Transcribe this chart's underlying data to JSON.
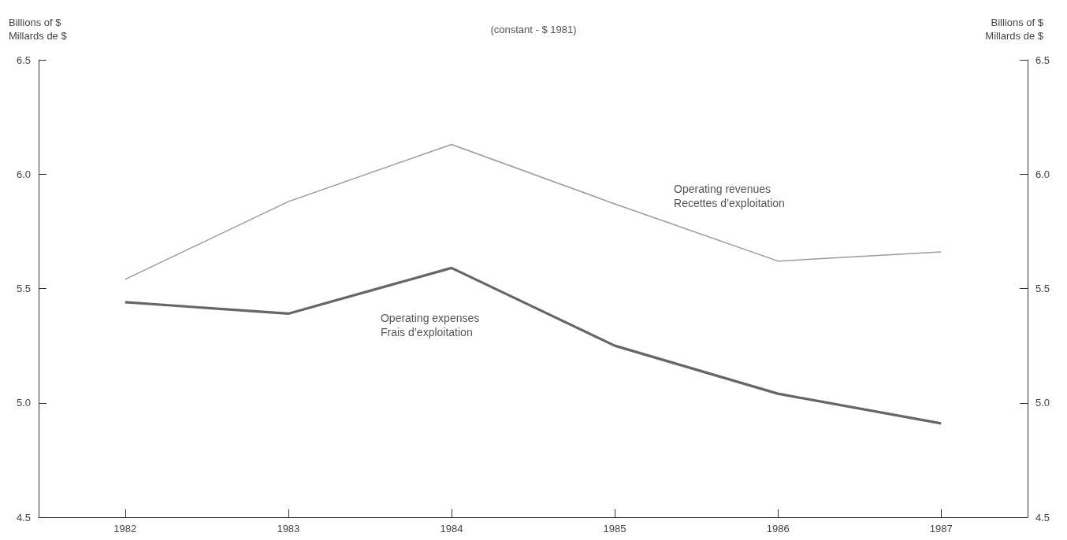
{
  "chart_data": {
    "type": "line",
    "subtitle": "(constant - $ 1981)",
    "ylabel": "Billions of $\nMillards de $",
    "y2label": "Billions of $\nMillards de $",
    "x": [
      1982,
      1983,
      1984,
      1985,
      1986,
      1987
    ],
    "xlim": [
      1981.47,
      1987.53
    ],
    "xticks": [
      1982,
      1983,
      1984,
      1985,
      1986,
      1987
    ],
    "ylim": [
      4.5,
      6.5
    ],
    "yticks": [
      4.5,
      {
        "value": 5,
        "label": "5.0"
      },
      5.5,
      {
        "value": 6,
        "label": "6.0"
      },
      6.5
    ],
    "y2lim": [
      4.5,
      6.5
    ],
    "y2ticks": [
      4.5,
      {
        "value": 5,
        "label": "5.0"
      },
      5.5,
      {
        "value": 6,
        "label": "6.0"
      },
      6.5
    ],
    "series": [
      {
        "name": "Operating revenues\nRecettes d’exploitation",
        "color": "#9a9a9a",
        "values": [
          5.54,
          5.88,
          6.13,
          5.87,
          5.62,
          5.66
        ]
      },
      {
        "name": "Operating expenses\nFrais d’exploitation",
        "color": "#666666",
        "values": [
          5.44,
          5.39,
          5.59,
          5.25,
          5.04,
          4.91
        ]
      }
    ],
    "grid": false,
    "legend": false
  }
}
